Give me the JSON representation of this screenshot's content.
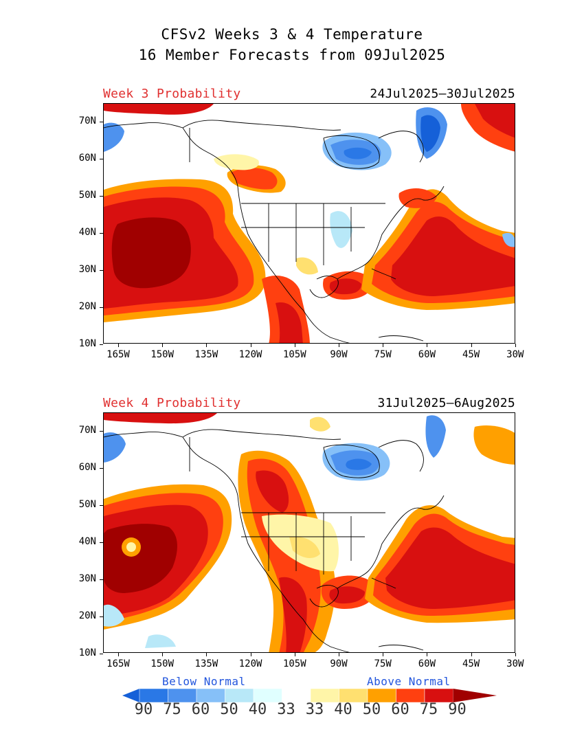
{
  "title_line1": "CFSv2 Weeks 3 & 4 Temperature",
  "title_line2": "16 Member Forecasts from 09Jul2025",
  "panels": [
    {
      "label": "Week 3 Probability",
      "dates": "24Jul2025–30Jul2025"
    },
    {
      "label": "Week 4 Probability",
      "dates": "31Jul2025–6Aug2025"
    }
  ],
  "lat_ticks": [
    "70N",
    "60N",
    "50N",
    "40N",
    "30N",
    "20N",
    "10N"
  ],
  "lon_ticks": [
    "165W",
    "150W",
    "135W",
    "120W",
    "105W",
    "90W",
    "75W",
    "60W",
    "45W",
    "30W"
  ],
  "legend": {
    "below_label": "Below Normal",
    "above_label": "Above Normal",
    "values": [
      "90",
      "75",
      "60",
      "50",
      "40",
      "33",
      "33",
      "40",
      "50",
      "60",
      "75",
      "90"
    ],
    "colors": [
      "#1560d8",
      "#2a78e6",
      "#4e92ee",
      "#86c0f8",
      "#b8e8f8",
      "#e0ffff",
      "#ffffff",
      "#fff5a8",
      "#ffe070",
      "#ffa000",
      "#ff4010",
      "#d81010",
      "#a00000"
    ]
  }
}
